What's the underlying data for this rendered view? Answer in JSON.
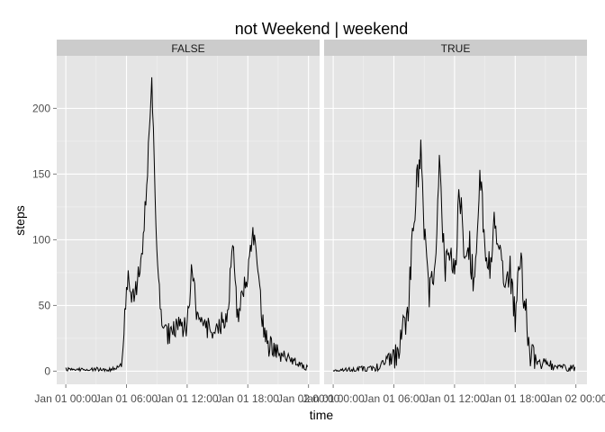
{
  "chart_data": {
    "type": "line",
    "title": "not Weekend | weekend",
    "xlabel": "time",
    "ylabel": "steps",
    "facet_var": "not Weekend | weekend",
    "x_tick_labels": [
      "Jan 01 00:00",
      "Jan 01 06:00",
      "Jan 01 12:00",
      "Jan 01 18:00",
      "Jan 02 00:00"
    ],
    "x_tick_hours": [
      0,
      6,
      12,
      18,
      24
    ],
    "y_ticks": [
      0,
      50,
      100,
      150,
      200
    ],
    "xlim_hours": [
      -0.9,
      25.1
    ],
    "ylim": [
      -10,
      240
    ],
    "grid": true,
    "colors": {
      "panel": "#e5e5e5",
      "strip": "#cccccc",
      "grid_major": "#ffffff",
      "grid_minor": "#f2f2f2",
      "line": "#000000",
      "tick": "#7f7f7f"
    },
    "x_interval_minutes": 5,
    "panels": [
      {
        "label": "FALSE",
        "anchors": [
          [
            0,
            2
          ],
          [
            0.5,
            1
          ],
          [
            1,
            1.5
          ],
          [
            2,
            1
          ],
          [
            3,
            1.5
          ],
          [
            4,
            1
          ],
          [
            5,
            2
          ],
          [
            5.5,
            4
          ],
          [
            5.75,
            30
          ],
          [
            6,
            65
          ],
          [
            6.25,
            70
          ],
          [
            6.5,
            55
          ],
          [
            7,
            65
          ],
          [
            7.5,
            85
          ],
          [
            8,
            140
          ],
          [
            8.25,
            180
          ],
          [
            8.5,
            230
          ],
          [
            8.75,
            150
          ],
          [
            9,
            100
          ],
          [
            9.25,
            60
          ],
          [
            9.5,
            30
          ],
          [
            10,
            28
          ],
          [
            11,
            32
          ],
          [
            12,
            35
          ],
          [
            12.5,
            80
          ],
          [
            13,
            40
          ],
          [
            14,
            32
          ],
          [
            15,
            30
          ],
          [
            16,
            45
          ],
          [
            16.5,
            95
          ],
          [
            17,
            40
          ],
          [
            17.5,
            60
          ],
          [
            18,
            75
          ],
          [
            18.5,
            110
          ],
          [
            19,
            70
          ],
          [
            19.5,
            35
          ],
          [
            20,
            20
          ],
          [
            21,
            15
          ],
          [
            22,
            10
          ],
          [
            23,
            5
          ],
          [
            24,
            2
          ]
        ],
        "jitter": 9
      },
      {
        "label": "TRUE",
        "anchors": [
          [
            0,
            0
          ],
          [
            1,
            0.5
          ],
          [
            2,
            1
          ],
          [
            3,
            1.5
          ],
          [
            4,
            2
          ],
          [
            5,
            5
          ],
          [
            6,
            10
          ],
          [
            7,
            30
          ],
          [
            7.5,
            55
          ],
          [
            8,
            120
          ],
          [
            8.5,
            160
          ],
          [
            8.75,
            165
          ],
          [
            9,
            110
          ],
          [
            9.5,
            60
          ],
          [
            10,
            75
          ],
          [
            10.5,
            155
          ],
          [
            11,
            80
          ],
          [
            11.5,
            90
          ],
          [
            12,
            70
          ],
          [
            12.5,
            140
          ],
          [
            13,
            80
          ],
          [
            13.5,
            95
          ],
          [
            14,
            60
          ],
          [
            14.5,
            150
          ],
          [
            15,
            95
          ],
          [
            15.5,
            80
          ],
          [
            16,
            115
          ],
          [
            16.5,
            100
          ],
          [
            17,
            60
          ],
          [
            17.5,
            75
          ],
          [
            18,
            40
          ],
          [
            18.5,
            85
          ],
          [
            19,
            50
          ],
          [
            19.5,
            15
          ],
          [
            20,
            8
          ],
          [
            21,
            5
          ],
          [
            22,
            3
          ],
          [
            23,
            2
          ],
          [
            24,
            2
          ]
        ],
        "jitter": 14
      }
    ]
  }
}
